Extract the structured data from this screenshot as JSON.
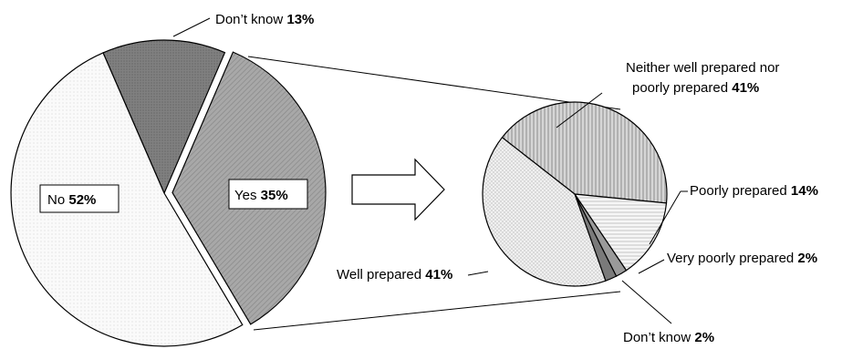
{
  "chart_data": [
    {
      "type": "pie",
      "slices": [
        {
          "label": "Don’t know",
          "value": 13,
          "value_label": "13%"
        },
        {
          "label": "Yes",
          "value": 35,
          "value_label": "35%"
        },
        {
          "label": "No",
          "value": 52,
          "value_label": "52%"
        }
      ],
      "exploded_slice": "Yes"
    },
    {
      "type": "pie",
      "slices": [
        {
          "label_lines": [
            "Neither well prepared nor",
            "poorly prepared"
          ],
          "value": 41,
          "value_label": "41%"
        },
        {
          "label": "Poorly prepared",
          "value": 14,
          "value_label": "14%"
        },
        {
          "label": "Very poorly prepared",
          "value": 2,
          "value_label": "2%"
        },
        {
          "label": "Don’t know",
          "value": 2,
          "value_label": "2%"
        },
        {
          "label": "Well prepared",
          "value": 41,
          "value_label": "41%"
        }
      ]
    }
  ],
  "colors": {
    "dont_know_main": "#7a7a7a",
    "yes_main": "#b4b4b4",
    "no_main": "#f4f4f4",
    "neither": "#c2c2c2",
    "poorly": "#ececec",
    "very_poorly": "#9a9a9a",
    "dont_know_sub": "#7a7a7a",
    "well": "#e6e6e6"
  },
  "icons": {
    "arrow": "right-arrow-icon"
  }
}
